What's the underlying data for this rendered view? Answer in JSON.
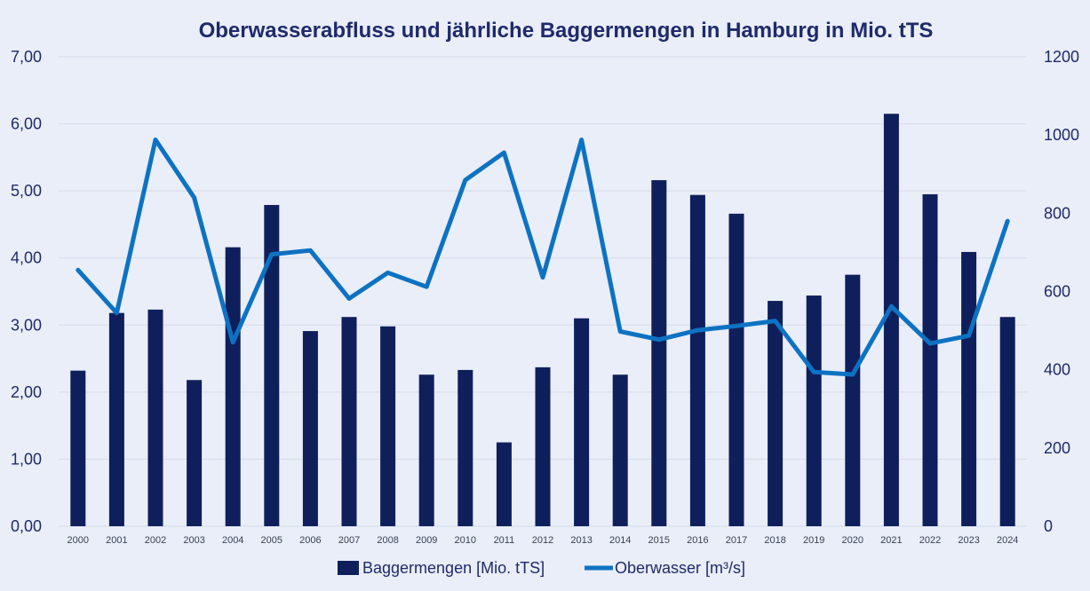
{
  "chart_data": {
    "type": "bar",
    "title": "Oberwasserabfluss und jährliche Baggermengen in Hamburg in Mio. tTS",
    "categories": [
      "2000",
      "2001",
      "2002",
      "2003",
      "2004",
      "2005",
      "2006",
      "2007",
      "2008",
      "2009",
      "2010",
      "2011",
      "2012",
      "2013",
      "2014",
      "2015",
      "2016",
      "2017",
      "2018",
      "2019",
      "2020",
      "2021",
      "2022",
      "2023",
      "2024"
    ],
    "series": [
      {
        "name": "Baggermengen [Mio. tTS]",
        "type": "bar",
        "axis": "left",
        "color": "#0f1f5c",
        "values": [
          2.32,
          3.18,
          3.23,
          2.18,
          4.16,
          4.79,
          2.91,
          3.12,
          2.98,
          2.26,
          2.33,
          1.25,
          2.37,
          3.1,
          2.26,
          5.16,
          4.94,
          4.66,
          3.36,
          3.44,
          3.75,
          6.15,
          4.95,
          4.09,
          3.12
        ]
      },
      {
        "name": "Oberwasser [m³/s]",
        "type": "line",
        "axis": "right",
        "color": "#0e72c2",
        "values": [
          655,
          545,
          988,
          840,
          470,
          695,
          705,
          582,
          648,
          612,
          885,
          955,
          636,
          988,
          498,
          477,
          501,
          512,
          525,
          394,
          388,
          562,
          467,
          487,
          780
        ]
      }
    ],
    "y_left": {
      "min": 0,
      "max": 7,
      "ticks": [
        "0,00",
        "1,00",
        "2,00",
        "3,00",
        "4,00",
        "5,00",
        "6,00",
        "7,00"
      ]
    },
    "y_right": {
      "min": 0,
      "max": 1200,
      "ticks": [
        "0",
        "200",
        "400",
        "600",
        "800",
        "1000",
        "1200"
      ]
    },
    "grid": true,
    "legend": "bottom-center"
  }
}
